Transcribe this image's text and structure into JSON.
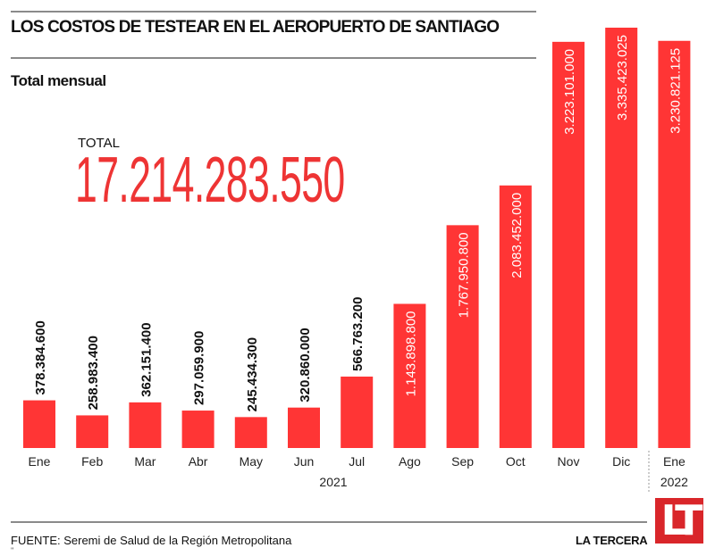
{
  "header": {
    "title": "LOS COSTOS DE TESTEAR EN EL AEROPUERTO DE SANTIAGO",
    "subtitle": "Total mensual"
  },
  "total": {
    "label": "TOTAL",
    "value": "17.214.283.550"
  },
  "footer": {
    "source": "FUENTE: Seremi de Salud de la Región Metropolitana",
    "marks": "''",
    "brand": "LA TERCERA",
    "logo": "LT"
  },
  "colors": {
    "bar": "#ff3535",
    "logo": "#d9262a",
    "total": "#ee3434"
  },
  "chart_data": {
    "type": "bar",
    "title": "LOS COSTOS DE TESTEAR EN EL AEROPUERTO DE SANTIAGO",
    "subtitle": "Total mensual",
    "xlabel": "",
    "ylabel": "",
    "categories": [
      "Ene",
      "Feb",
      "Mar",
      "Abr",
      "May",
      "Jun",
      "Jul",
      "Ago",
      "Sep",
      "Oct",
      "Nov",
      "Dic",
      "Ene"
    ],
    "years": [
      {
        "label": "2021",
        "from": 0,
        "to": 11
      },
      {
        "label": "2022",
        "from": 12,
        "to": 12
      }
    ],
    "values": [
      378384600,
      258983400,
      362151400,
      297059900,
      245434300,
      320860000,
      566763200,
      1143898800,
      1767950800,
      2083452000,
      3223101000,
      3335423025,
      3230821125
    ],
    "labels": [
      "378.384.600",
      "258.983.400",
      "362.151.400",
      "297.059.900",
      "245.434.300",
      "320.860.000",
      "566.763.200",
      "1.143.898.800",
      "1.767.950.800",
      "2.083.452.000",
      "3.223.101.000",
      "3.335.423.025",
      "3.230.821.125"
    ],
    "label_inside": [
      false,
      false,
      false,
      false,
      false,
      false,
      false,
      true,
      true,
      true,
      true,
      true,
      true
    ],
    "ylim": [
      0,
      3335423025
    ],
    "grid": false,
    "legend": "none"
  }
}
